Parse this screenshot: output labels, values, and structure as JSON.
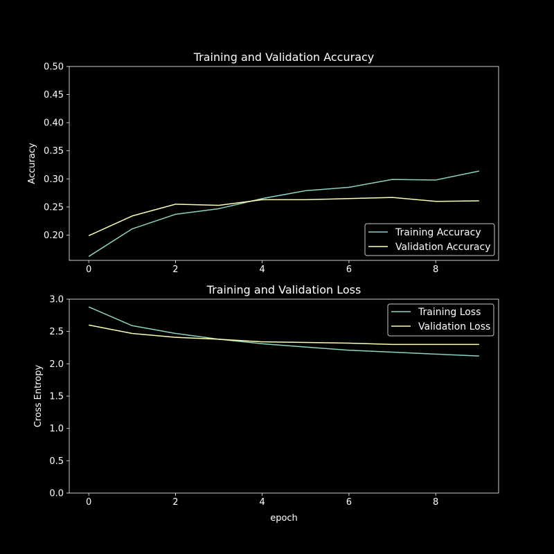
{
  "chart_data": [
    {
      "type": "line",
      "title": "Training and Validation Accuracy",
      "xlabel": "",
      "ylabel": "Accuracy",
      "x": [
        0,
        1,
        2,
        3,
        4,
        5,
        6,
        7,
        8,
        9
      ],
      "xlim": [
        -0.45,
        9.45
      ],
      "ylim": [
        0.155,
        0.5
      ],
      "xticks": [
        0,
        2,
        4,
        6,
        8
      ],
      "yticks": [
        0.2,
        0.25,
        0.3,
        0.35,
        0.4,
        0.45,
        0.5
      ],
      "ytick_decimals": 2,
      "legend_position": "lower right",
      "series": [
        {
          "name": "Training Accuracy",
          "color": "#8dd3c7",
          "values": [
            0.162,
            0.211,
            0.237,
            0.247,
            0.265,
            0.279,
            0.285,
            0.299,
            0.298,
            0.314
          ]
        },
        {
          "name": "Validation Accuracy",
          "color": "#ffffb3",
          "values": [
            0.199,
            0.234,
            0.255,
            0.253,
            0.263,
            0.263,
            0.265,
            0.267,
            0.26,
            0.261
          ]
        }
      ]
    },
    {
      "type": "line",
      "title": "Training and Validation Loss",
      "xlabel": "epoch",
      "ylabel": "Cross Entropy",
      "x": [
        0,
        1,
        2,
        3,
        4,
        5,
        6,
        7,
        8,
        9
      ],
      "xlim": [
        -0.45,
        9.45
      ],
      "ylim": [
        0.0,
        3.0
      ],
      "xticks": [
        0,
        2,
        4,
        6,
        8
      ],
      "yticks": [
        0.0,
        0.5,
        1.0,
        1.5,
        2.0,
        2.5,
        3.0
      ],
      "ytick_decimals": 1,
      "legend_position": "upper right",
      "series": [
        {
          "name": "Training Loss",
          "color": "#8dd3c7",
          "values": [
            2.88,
            2.59,
            2.47,
            2.38,
            2.31,
            2.26,
            2.21,
            2.18,
            2.15,
            2.12
          ]
        },
        {
          "name": "Validation Loss",
          "color": "#ffffb3",
          "values": [
            2.6,
            2.47,
            2.41,
            2.38,
            2.34,
            2.33,
            2.32,
            2.3,
            2.3,
            2.3
          ]
        }
      ]
    }
  ]
}
